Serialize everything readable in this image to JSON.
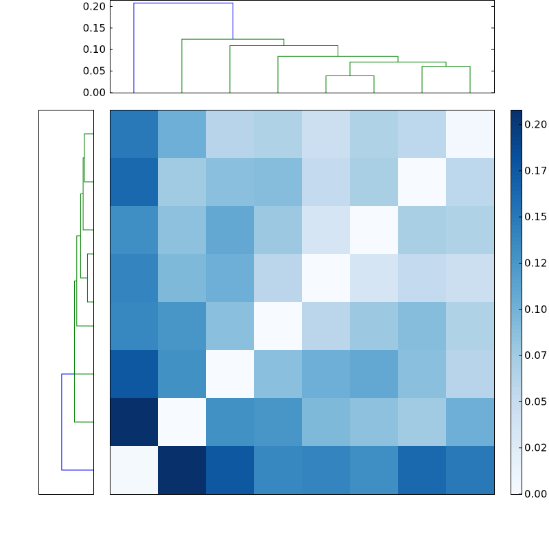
{
  "chart_data": [
    {
      "type": "dendrogram",
      "orientation": "top",
      "ylim": [
        0.0,
        0.215
      ],
      "yticks": [
        0.0,
        0.05,
        0.1,
        0.15,
        0.2
      ],
      "ytick_labels": [
        "0.00",
        "0.05",
        "0.10",
        "0.15",
        "0.20"
      ],
      "leaf_count": 8,
      "colors": {
        "root": "#0000ff",
        "cluster": "#008000"
      },
      "links": [
        {
          "x": [
            6,
            7
          ],
          "children_height": [
            0.0,
            0.0
          ],
          "height": 0.061,
          "color": "cluster"
        },
        {
          "x": [
            4,
            5
          ],
          "children_height": [
            0.0,
            0.0
          ],
          "height": 0.039,
          "color": "cluster"
        },
        {
          "x": [
            4.5,
            6.5
          ],
          "children_height": [
            0.039,
            0.061
          ],
          "height": 0.071,
          "color": "cluster"
        },
        {
          "x": [
            3,
            5.5
          ],
          "children_height": [
            0.0,
            0.071
          ],
          "height": 0.084,
          "color": "cluster"
        },
        {
          "x": [
            2,
            4.25
          ],
          "children_height": [
            0.0,
            0.084
          ],
          "height": 0.109,
          "color": "cluster"
        },
        {
          "x": [
            1,
            3.125
          ],
          "children_height": [
            0.0,
            0.109
          ],
          "height": 0.124,
          "color": "cluster"
        },
        {
          "x": [
            0,
            2.0625
          ],
          "children_height": [
            0.0,
            0.124
          ],
          "height": 0.208,
          "color": "root"
        }
      ]
    },
    {
      "type": "dendrogram",
      "orientation": "left",
      "xlim": [
        0.215,
        0.0
      ],
      "leaf_count": 8,
      "colors": {
        "root": "#0000ff",
        "cluster": "#008000"
      },
      "links": [
        {
          "y": [
            0,
            1
          ],
          "children_height": [
            0.0,
            0.0
          ],
          "height": 0.035,
          "color": "cluster"
        },
        {
          "y": [
            0.5,
            2
          ],
          "children_height": [
            0.035,
            0.0
          ],
          "height": 0.04,
          "color": "cluster"
        },
        {
          "y": [
            2.5,
            3.5
          ],
          "children_height": [
            0.0,
            0.0
          ],
          "height": 0.023,
          "color": "cluster"
        },
        {
          "y": [
            1.25,
            3
          ],
          "children_height": [
            0.04,
            0.023
          ],
          "height": 0.05,
          "color": "cluster"
        },
        {
          "y": [
            2.125,
            4
          ],
          "children_height": [
            0.05,
            0.0
          ],
          "height": 0.065,
          "color": "cluster"
        },
        {
          "y": [
            3.0625,
            5
          ],
          "children_height": [
            0.065,
            0.0
          ],
          "height": 0.074,
          "color": "cluster"
        },
        {
          "y": [
            4.03,
            6
          ],
          "children_height": [
            0.074,
            0.0
          ],
          "height": 0.074,
          "color": "cluster"
        },
        {
          "y": [
            5.0,
            7
          ],
          "children_height": [
            0.074,
            0.0
          ],
          "height": 0.124,
          "color": "root"
        }
      ]
    },
    {
      "type": "heatmap",
      "colormap": "Blues",
      "vmin": 0.0,
      "vmax": 0.208,
      "rows": 8,
      "cols": 8,
      "values": [
        [
          0.15,
          0.103,
          0.062,
          0.066,
          0.046,
          0.066,
          0.058,
          0.005
        ],
        [
          0.163,
          0.076,
          0.088,
          0.09,
          0.053,
          0.071,
          0.0,
          0.058
        ],
        [
          0.132,
          0.086,
          0.11,
          0.079,
          0.035,
          0.0,
          0.071,
          0.066
        ],
        [
          0.141,
          0.094,
          0.103,
          0.059,
          0.0,
          0.035,
          0.053,
          0.046
        ],
        [
          0.139,
          0.126,
          0.088,
          0.0,
          0.059,
          0.079,
          0.09,
          0.066
        ],
        [
          0.176,
          0.131,
          0.0,
          0.088,
          0.103,
          0.11,
          0.088,
          0.062
        ],
        [
          0.208,
          0.0,
          0.131,
          0.126,
          0.094,
          0.086,
          0.076,
          0.103
        ],
        [
          0.003,
          0.208,
          0.176,
          0.139,
          0.141,
          0.132,
          0.163,
          0.15
        ]
      ]
    },
    {
      "type": "colorbar",
      "vmin": 0.0,
      "vmax": 0.208,
      "ticks": [
        0.0,
        0.025,
        0.05,
        0.075,
        0.1,
        0.125,
        0.15,
        0.175,
        0.2
      ],
      "tick_labels": [
        "0.00",
        "0.02",
        "0.05",
        "0.07",
        "0.10",
        "0.12",
        "0.15",
        "0.17",
        "0.20"
      ]
    }
  ]
}
